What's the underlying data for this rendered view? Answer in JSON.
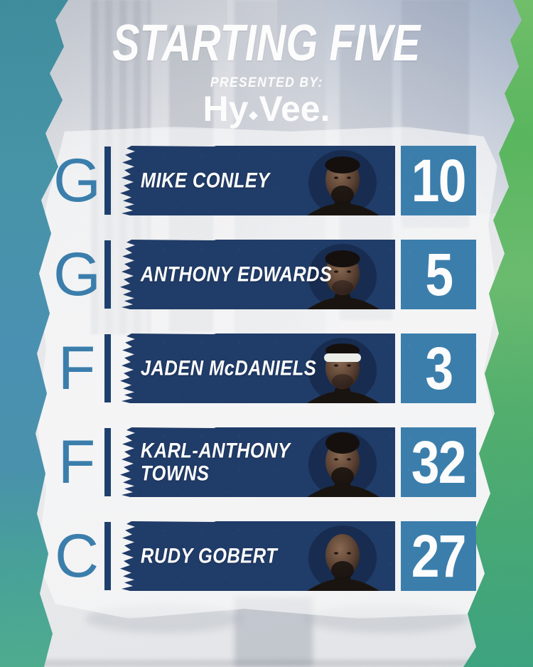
{
  "header": {
    "title": "STARTING FIVE",
    "presented_by": "PRESENTED BY:",
    "sponsor": {
      "part1": "Hy",
      "part2": "Vee."
    }
  },
  "colors": {
    "navy_bar": "#203c69",
    "separator": "#1e406f",
    "accent_blue": "#3b7fae",
    "paint_teal": "#4793aa",
    "paint_green": "#5cb46c",
    "background": "#e9ebee",
    "text": "#ffffff"
  },
  "roster": [
    {
      "position": "G",
      "name": "MIKE CONLEY",
      "number": "10"
    },
    {
      "position": "G",
      "name": "ANTHONY EDWARDS",
      "number": "5"
    },
    {
      "position": "F",
      "name": "JADEN McDANIELS",
      "number": "3"
    },
    {
      "position": "F",
      "name": "KARL-ANTHONY\nTOWNS",
      "number": "32"
    },
    {
      "position": "C",
      "name": "RUDY GOBERT",
      "number": "27"
    }
  ]
}
